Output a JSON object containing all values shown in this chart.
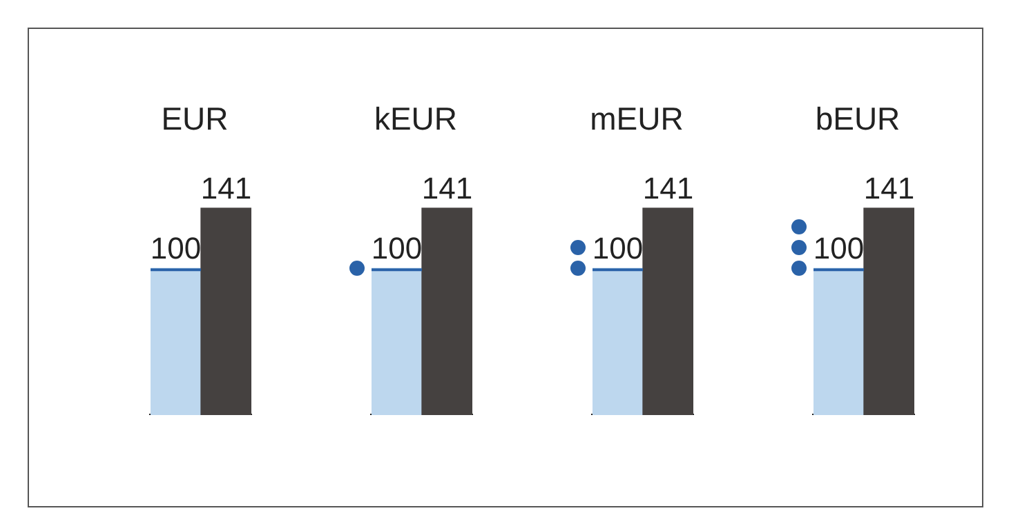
{
  "chart_data": [
    {
      "type": "bar",
      "title": "EUR",
      "categories": [
        null,
        null
      ],
      "values": [
        100,
        141
      ],
      "colors": [
        "#bdd7ee",
        "#454140"
      ],
      "data_labels": true
    },
    {
      "type": "bar",
      "title": "kEUR",
      "categories": [
        null,
        null
      ],
      "values": [
        100,
        141
      ],
      "colors": [
        "#bdd7ee",
        "#454140"
      ],
      "data_labels": true
    },
    {
      "type": "bar",
      "title": "mEUR",
      "categories": [
        null,
        null
      ],
      "values": [
        100,
        141
      ],
      "colors": [
        "#bdd7ee",
        "#454140"
      ],
      "data_labels": true
    },
    {
      "type": "bar",
      "title": "bEUR",
      "categories": [
        null,
        null
      ],
      "values": [
        100,
        141
      ],
      "colors": [
        "#bdd7ee",
        "#454140"
      ],
      "data_labels": true
    }
  ]
}
